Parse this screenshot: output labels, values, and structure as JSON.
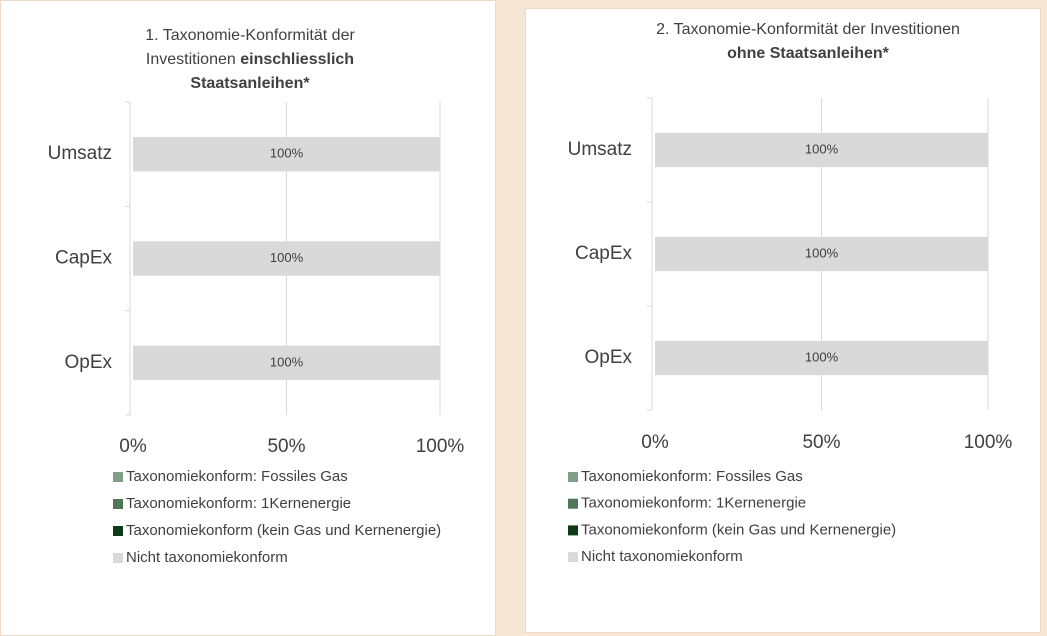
{
  "chart_data": [
    {
      "type": "bar",
      "orientation": "horizontal",
      "stacked": true,
      "title": "1. Taxonomie-Konformität der Investitionen",
      "title_bold": "einschliesslich Staatsanleihen*",
      "categories": [
        "Umsatz",
        "CapEx",
        "OpEx"
      ],
      "series": [
        {
          "name": "Taxonomiekonform: Fossiles Gas",
          "color": "#7f9f86",
          "values": [
            0,
            0,
            0
          ]
        },
        {
          "name": "Taxonomiekonform: 1Kernenergie",
          "color": "#4e7658",
          "values": [
            0,
            0,
            0
          ]
        },
        {
          "name": "Taxonomiekonform (kein Gas und Kernenergie)",
          "color": "#0d3a17",
          "values": [
            0,
            0,
            0
          ]
        },
        {
          "name": "Nicht taxonomiekonform",
          "color": "#d9d9d9",
          "values": [
            100,
            100,
            100
          ],
          "value_labels": [
            "100%",
            "100%",
            "100%"
          ]
        }
      ],
      "xlim": [
        0,
        100
      ],
      "xticks": [
        {
          "value": 0,
          "label": "0%"
        },
        {
          "value": 50,
          "label": "50%"
        },
        {
          "value": 100,
          "label": "100%"
        }
      ],
      "grid": true,
      "legend": "bottom"
    },
    {
      "type": "bar",
      "orientation": "horizontal",
      "stacked": true,
      "title": "2. Taxonomie-Konformität der Investitionen",
      "title_bold": "ohne Staatsanleihen*",
      "categories": [
        "Umsatz",
        "CapEx",
        "OpEx"
      ],
      "series": [
        {
          "name": "Taxonomiekonform: Fossiles Gas",
          "color": "#7f9f86",
          "values": [
            0,
            0,
            0
          ]
        },
        {
          "name": "Taxonomiekonform: 1Kernenergie",
          "color": "#4e7658",
          "values": [
            0,
            0,
            0
          ]
        },
        {
          "name": "Taxonomiekonform (kein Gas und Kernenergie)",
          "color": "#0d3a17",
          "values": [
            0,
            0,
            0
          ]
        },
        {
          "name": "Nicht taxonomiekonform",
          "color": "#d9d9d9",
          "values": [
            100,
            100,
            100
          ],
          "value_labels": [
            "100%",
            "100%",
            "100%"
          ]
        }
      ],
      "xlim": [
        0,
        100
      ],
      "xticks": [
        {
          "value": 0,
          "label": "0%"
        },
        {
          "value": 50,
          "label": "50%"
        },
        {
          "value": 100,
          "label": "100%"
        }
      ],
      "grid": true,
      "legend": "bottom"
    }
  ]
}
